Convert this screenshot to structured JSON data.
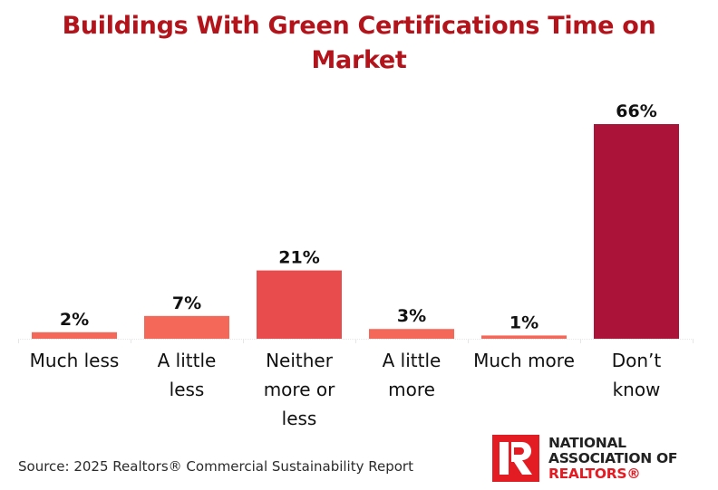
{
  "chart_data": {
    "type": "bar",
    "title": "Buildings With Green Certifications Time on Market",
    "title_lines": [
      "Buildings With Green Certifications Time on",
      "Market"
    ],
    "xlabel": "",
    "ylabel": "",
    "ylim": [
      0,
      70
    ],
    "grid": false,
    "categories": [
      "Much less",
      "A little less",
      "Neither more or less",
      "A little more",
      "Much more",
      "Don’t know"
    ],
    "category_label_lines": [
      [
        "Much less"
      ],
      [
        "A little",
        "less"
      ],
      [
        "Neither",
        "more or",
        "less"
      ],
      [
        "A little",
        "more"
      ],
      [
        "Much more"
      ],
      [
        "Don’t",
        "know"
      ]
    ],
    "values": [
      2,
      7,
      21,
      3,
      1,
      66
    ],
    "data_labels": [
      "2%",
      "7%",
      "21%",
      "3%",
      "1%",
      "66%"
    ],
    "colors": [
      "#f4685a",
      "#f4685a",
      "#e84c4c",
      "#f4685a",
      "#f4685a",
      "#ab1438"
    ],
    "value_unit": "%"
  },
  "footer": {
    "source": "Source: 2025 Realtors® Commercial Sustainability Report"
  },
  "logo": {
    "line1": "NATIONAL",
    "line2": "ASSOCIATION OF",
    "line3": "REALTORS®",
    "brand_color": "#e31b23"
  },
  "title_color": "#b3141b"
}
